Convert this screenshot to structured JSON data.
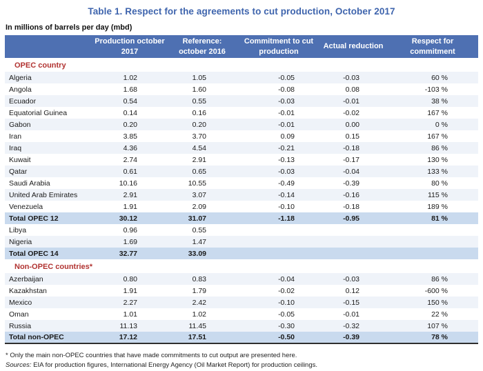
{
  "title": "Table 1. Respect for the agreements to cut production, October 2017",
  "subtitle": "In millions of barrels per day (mbd)",
  "colors": {
    "title_blue": "#3E64AD",
    "header_blue": "#4E70B2",
    "total_row_blue": "#C9DAEE",
    "row_stripe": "#EFF3F9",
    "section_red": "#B13331"
  },
  "columns": [
    "Production october 2017",
    "Reference: october 2016",
    "Commitment to cut production",
    "Actual reduction",
    "Respect for commitment"
  ],
  "sections": [
    {
      "label": "OPEC country",
      "rows": [
        {
          "country": "Algeria",
          "values": [
            "1.02",
            "1.05",
            "-0.05",
            "-0.03",
            "60 %"
          ],
          "total": false
        },
        {
          "country": "Angola",
          "values": [
            "1.68",
            "1.60",
            "-0.08",
            "0.08",
            "-103 %"
          ],
          "total": false
        },
        {
          "country": "Ecuador",
          "values": [
            "0.54",
            "0.55",
            "-0.03",
            "-0.01",
            "38 %"
          ],
          "total": false
        },
        {
          "country": "Equatorial Guinea",
          "values": [
            "0.14",
            "0.16",
            "-0.01",
            "-0.02",
            "167 %"
          ],
          "total": false
        },
        {
          "country": "Gabon",
          "values": [
            "0.20",
            "0.20",
            "-0.01",
            "0.00",
            "0 %"
          ],
          "total": false
        },
        {
          "country": "Iran",
          "values": [
            "3.85",
            "3.70",
            "0.09",
            "0.15",
            "167 %"
          ],
          "total": false
        },
        {
          "country": "Iraq",
          "values": [
            "4.36",
            "4.54",
            "-0.21",
            "-0.18",
            "86 %"
          ],
          "total": false
        },
        {
          "country": "Kuwait",
          "values": [
            "2.74",
            "2.91",
            "-0.13",
            "-0.17",
            "130 %"
          ],
          "total": false
        },
        {
          "country": "Qatar",
          "values": [
            "0.61",
            "0.65",
            "-0.03",
            "-0.04",
            "133 %"
          ],
          "total": false
        },
        {
          "country": "Saudi Arabia",
          "values": [
            "10.16",
            "10.55",
            "-0.49",
            "-0.39",
            "80 %"
          ],
          "total": false
        },
        {
          "country": "United Arab Emirates",
          "values": [
            "2.91",
            "3.07",
            "-0.14",
            "-0.16",
            "115 %"
          ],
          "total": false
        },
        {
          "country": "Venezuela",
          "values": [
            "1.91",
            "2.09",
            "-0.10",
            "-0.18",
            "189 %"
          ],
          "total": false
        },
        {
          "country": "Total OPEC 12",
          "values": [
            "30.12",
            "31.07",
            "-1.18",
            "-0.95",
            "81 %"
          ],
          "total": true
        },
        {
          "country": "Libya",
          "values": [
            "0.96",
            "0.55",
            "",
            "",
            ""
          ],
          "total": false
        },
        {
          "country": "Nigeria",
          "values": [
            "1.69",
            "1.47",
            "",
            "",
            ""
          ],
          "total": false
        },
        {
          "country": "Total OPEC 14",
          "values": [
            "32.77",
            "33.09",
            "",
            "",
            ""
          ],
          "total": true
        }
      ]
    },
    {
      "label": "Non-OPEC countries*",
      "rows": [
        {
          "country": "Azerbaijan",
          "values": [
            "0.80",
            "0.83",
            "-0.04",
            "-0.03",
            "86 %"
          ],
          "total": false
        },
        {
          "country": "Kazakhstan",
          "values": [
            "1.91",
            "1.79",
            "-0.02",
            "0.12",
            "-600 %"
          ],
          "total": false
        },
        {
          "country": "Mexico",
          "values": [
            "2.27",
            "2.42",
            "-0.10",
            "-0.15",
            "150 %"
          ],
          "total": false
        },
        {
          "country": "Oman",
          "values": [
            "1.01",
            "1.02",
            "-0.05",
            "-0.01",
            "22 %"
          ],
          "total": false
        },
        {
          "country": "Russia",
          "values": [
            "11.13",
            "11.45",
            "-0.30",
            "-0.32",
            "107 %"
          ],
          "total": false
        },
        {
          "country": "Total non-OPEC",
          "values": [
            "17.12",
            "17.51",
            "-0.50",
            "-0.39",
            "78 %"
          ],
          "total": true
        }
      ]
    }
  ],
  "footnotes": {
    "note": "* Only the main non-OPEC countries that have made commitments to cut output are presented here.",
    "sources_label": "Sources:",
    "sources_text": " EIA for production figures, International Energy Agency (Oil Market Report) for production ceilings."
  }
}
